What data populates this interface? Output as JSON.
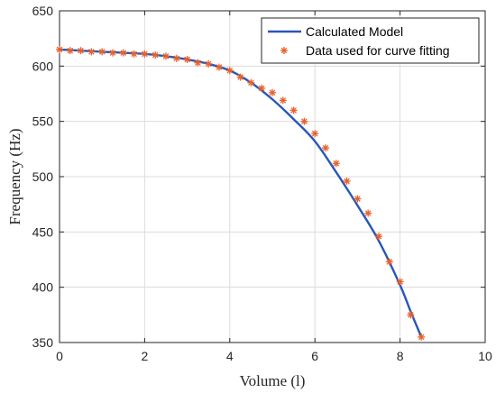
{
  "chart_data": {
    "type": "line",
    "xlabel": "Volume (l)",
    "ylabel": "Frequency (Hz)",
    "xlim": [
      0,
      10
    ],
    "ylim": [
      350,
      650
    ],
    "xticks": [
      0,
      2,
      4,
      6,
      8,
      10
    ],
    "yticks": [
      350,
      400,
      450,
      500,
      550,
      600,
      650
    ],
    "grid": true,
    "legend_position": "top-right",
    "series": [
      {
        "name": "Calculated Model",
        "kind": "line",
        "color": "#2a56b8",
        "x": [
          0,
          0.5,
          1,
          1.5,
          2,
          2.5,
          3,
          3.5,
          4,
          4.5,
          5,
          5.5,
          6,
          6.5,
          7,
          7.5,
          8,
          8.25,
          8.5
        ],
        "y": [
          615,
          614,
          613,
          612,
          611,
          609,
          606,
          602,
          596,
          585,
          570,
          552,
          532,
          504,
          474,
          442,
          402,
          378,
          355
        ]
      },
      {
        "name": "Data used for curve fitting",
        "kind": "scatter",
        "marker": "asterisk",
        "color": "#e8622a",
        "x": [
          0,
          0.25,
          0.5,
          0.75,
          1,
          1.25,
          1.5,
          1.75,
          2,
          2.25,
          2.5,
          2.75,
          3,
          3.25,
          3.5,
          3.75,
          4,
          4.25,
          4.5,
          4.75,
          5,
          5.25,
          5.5,
          5.75,
          6,
          6.25,
          6.5,
          6.75,
          7,
          7.25,
          7.5,
          7.75,
          8,
          8.25,
          8.5
        ],
        "y": [
          615,
          614,
          614,
          613,
          613,
          612,
          612,
          611,
          611,
          610,
          609,
          607,
          606,
          603,
          602,
          599,
          596,
          590,
          585,
          580,
          576,
          569,
          560,
          550,
          539,
          526,
          512,
          496,
          480,
          467,
          446,
          423,
          405,
          375,
          355
        ]
      }
    ]
  }
}
